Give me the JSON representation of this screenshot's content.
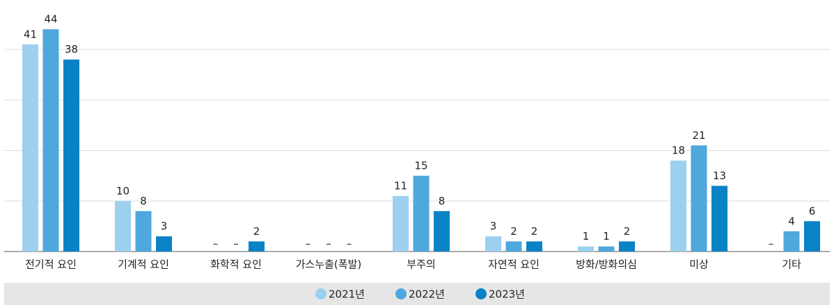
{
  "chart_data": {
    "type": "bar",
    "categories": [
      "전기적 요인",
      "기계적 요인",
      "화학적 요인",
      "가스누출(폭발)",
      "부주의",
      "자연적 요인",
      "방화/방화의심",
      "미상",
      "기타"
    ],
    "series": [
      {
        "name": "2021년",
        "color": "#9dd0ee",
        "values": [
          41,
          10,
          null,
          null,
          11,
          3,
          1,
          18,
          null
        ],
        "value_labels": [
          "41",
          "10",
          "–",
          "–",
          "11",
          "3",
          "1",
          "18",
          "–"
        ]
      },
      {
        "name": "2022년",
        "color": "#4ea8dc",
        "values": [
          44,
          8,
          null,
          null,
          15,
          2,
          1,
          21,
          4
        ],
        "value_labels": [
          "44",
          "8",
          "–",
          "–",
          "15",
          "2",
          "1",
          "21",
          "4"
        ]
      },
      {
        "name": "2023년",
        "color": "#0a82c6",
        "values": [
          38,
          3,
          2,
          null,
          8,
          2,
          2,
          13,
          6
        ],
        "value_labels": [
          "38",
          "3",
          "2",
          "–",
          "8",
          "2",
          "2",
          "13",
          "6"
        ]
      }
    ],
    "ylim": [
      0,
      48
    ],
    "yticks": [
      0,
      10,
      20,
      30,
      40
    ],
    "grid": true
  }
}
